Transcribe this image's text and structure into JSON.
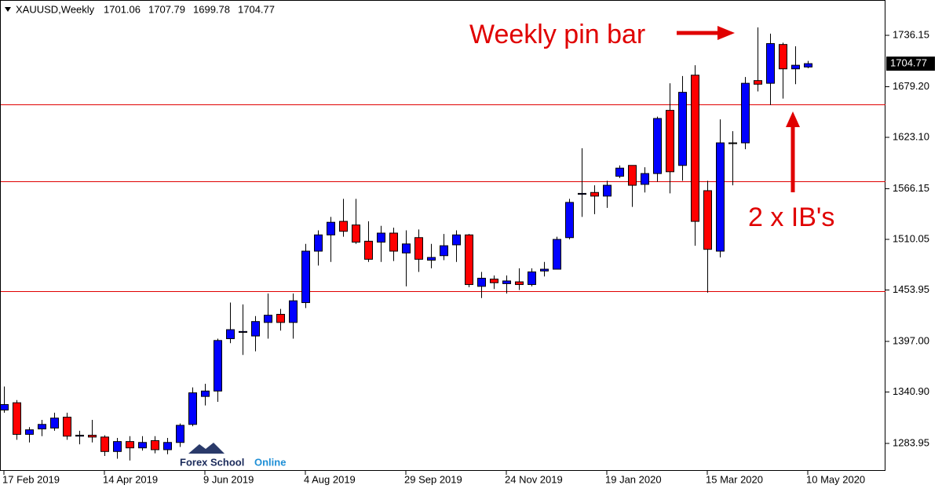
{
  "chart_data": {
    "type": "candlestick",
    "symbol": "XAUUSD,Weekly",
    "categories": [
      "17 Feb 2019",
      null,
      null,
      null,
      null,
      null,
      null,
      null,
      "14 Apr 2019",
      null,
      null,
      null,
      null,
      null,
      null,
      null,
      "9 Jun 2019",
      null,
      null,
      null,
      null,
      null,
      null,
      null,
      "4 Aug 2019",
      null,
      null,
      null,
      null,
      null,
      null,
      null,
      "29 Sep 2019",
      null,
      null,
      null,
      null,
      null,
      null,
      null,
      "24 Nov 2019",
      null,
      null,
      null,
      null,
      null,
      null,
      null,
      "19 Jan 2020",
      null,
      null,
      null,
      null,
      null,
      null,
      null,
      "15 Mar 2020",
      null,
      null,
      null,
      null,
      null,
      null,
      null,
      "10 May 2020"
    ],
    "open": [
      1321,
      1329,
      1294,
      1300,
      1301,
      1313,
      1292,
      1293,
      1291,
      1275,
      1286,
      1279,
      1287,
      1277,
      1285,
      1305,
      1336,
      1342,
      1400,
      1407,
      1403,
      1418,
      1427,
      1418,
      1440,
      1497,
      1515,
      1530,
      1526,
      1508,
      1507,
      1517,
      1495,
      1512,
      1487,
      1492,
      1504,
      1515,
      1458,
      1466,
      1461,
      1463,
      1460,
      1475,
      1477,
      1512,
      1560,
      1562,
      1558,
      1580,
      1592,
      1571,
      1583,
      1653,
      1592,
      1692,
      1564,
      1497,
      1617,
      1617,
      1686,
      1683,
      1726,
      1699,
      1701.06
    ],
    "high": [
      1347,
      1332,
      1302,
      1310,
      1318,
      1318,
      1298,
      1310,
      1293,
      1290,
      1292,
      1292,
      1292,
      1290,
      1306,
      1346,
      1350,
      1400,
      1440,
      1438,
      1425,
      1450,
      1433,
      1450,
      1505,
      1520,
      1535,
      1555,
      1555,
      1530,
      1525,
      1523,
      1520,
      1521,
      1505,
      1516,
      1520,
      1516,
      1474,
      1470,
      1470,
      1478,
      1478,
      1485,
      1513,
      1555,
      1611,
      1570,
      1575,
      1592,
      1592,
      1590,
      1646,
      1683,
      1691,
      1703,
      1575,
      1643,
      1630,
      1690,
      1745,
      1738,
      1728,
      1724,
      1707.79
    ],
    "low": [
      1318,
      1288,
      1285,
      1292,
      1298,
      1288,
      1283,
      1285,
      1270,
      1267,
      1265,
      1276,
      1273,
      1272,
      1280,
      1303,
      1326,
      1330,
      1395,
      1382,
      1386,
      1400,
      1409,
      1400,
      1434,
      1481,
      1485,
      1513,
      1505,
      1485,
      1485,
      1486,
      1458,
      1474,
      1478,
      1487,
      1485,
      1457,
      1445,
      1455,
      1450,
      1454,
      1458,
      1469,
      1477,
      1510,
      1535,
      1538,
      1545,
      1578,
      1546,
      1562,
      1574,
      1561,
      1575,
      1503,
      1451,
      1490,
      1570,
      1610,
      1674,
      1659,
      1666,
      1682,
      1699.78
    ],
    "close": [
      1327,
      1294,
      1299,
      1305,
      1312,
      1292,
      1293,
      1291,
      1275,
      1286,
      1279,
      1285,
      1277,
      1285,
      1304,
      1340,
      1342,
      1398,
      1410,
      1408,
      1419,
      1426,
      1418,
      1442,
      1497,
      1515,
      1529,
      1519,
      1507,
      1488,
      1517,
      1497,
      1505,
      1488,
      1490,
      1503,
      1515,
      1460,
      1467,
      1462,
      1464,
      1460,
      1474,
      1477,
      1510,
      1551,
      1561,
      1558,
      1570,
      1589,
      1570,
      1583,
      1644,
      1585,
      1673,
      1530,
      1499,
      1617,
      1617,
      1683,
      1682,
      1727,
      1699,
      1703,
      1704.77
    ],
    "up_color": "#0000ff",
    "down_color": "#ff0000",
    "ylim": [
      1253.5,
      1775.3
    ],
    "yticks": [
      {
        "value": 1283.95,
        "label": "1283.95"
      },
      {
        "value": 1340.9,
        "label": "1340.90"
      },
      {
        "value": 1397,
        "label": "1397.00"
      },
      {
        "value": 1453.95,
        "label": "1453.95"
      },
      {
        "value": 1510.05,
        "label": "1510.05"
      },
      {
        "value": 1566.15,
        "label": "1566.15"
      },
      {
        "value": 1623.1,
        "label": "1623.10"
      },
      {
        "value": 1679.2,
        "label": "1679.20"
      },
      {
        "value": 1736.15,
        "label": "1736.15"
      }
    ],
    "levels": [
      1659.6,
      1574.4,
      1452.6
    ],
    "level_color": "#e00000",
    "annotations": [
      "Weekly pin bar",
      "2 x IB's"
    ],
    "logo": [
      "Forex School",
      "Online"
    ]
  }
}
